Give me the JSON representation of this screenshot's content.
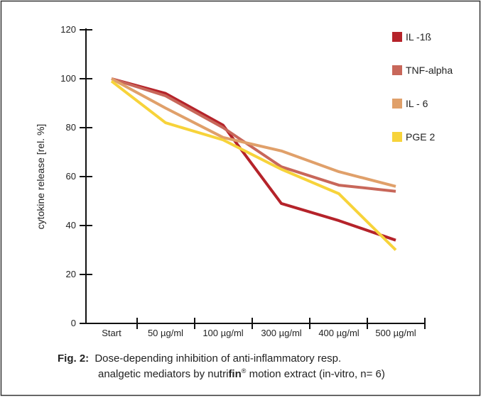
{
  "chart_data": {
    "type": "line",
    "y_label": "cytokine release [rel. %]",
    "categories": [
      "Start",
      "50 µg/ml",
      "100 µg/ml",
      "300 µg/ml",
      "400 µg/ml",
      "500 µg/ml"
    ],
    "series": [
      {
        "name": "IL -1ß",
        "color": "#b5232a",
        "values": [
          100,
          94,
          81,
          49,
          42,
          34
        ]
      },
      {
        "name": "TNF-alpha",
        "color": "#c8675a",
        "values": [
          100,
          93,
          80,
          64,
          56.5,
          54
        ]
      },
      {
        "name": "IL - 6",
        "color": "#e0a06a",
        "values": [
          100,
          88,
          76,
          70.5,
          62,
          56
        ]
      },
      {
        "name": "PGE 2",
        "color": "#f7d33a",
        "values": [
          99,
          82,
          75,
          63,
          53,
          30
        ]
      }
    ],
    "ylim": [
      0,
      120
    ],
    "yticks": [
      0,
      20,
      40,
      60,
      80,
      100,
      120
    ],
    "legend": "upper right"
  },
  "caption": {
    "label": "Fig. 2:",
    "line1": "Dose-depending inhibition of anti-inflammatory resp.",
    "line2_pre": "analgetic mediators by nutri",
    "line2_bold": "fin",
    "line2_sup": "®",
    "line2_post": " motion extract (in-vitro, n= 6)"
  }
}
